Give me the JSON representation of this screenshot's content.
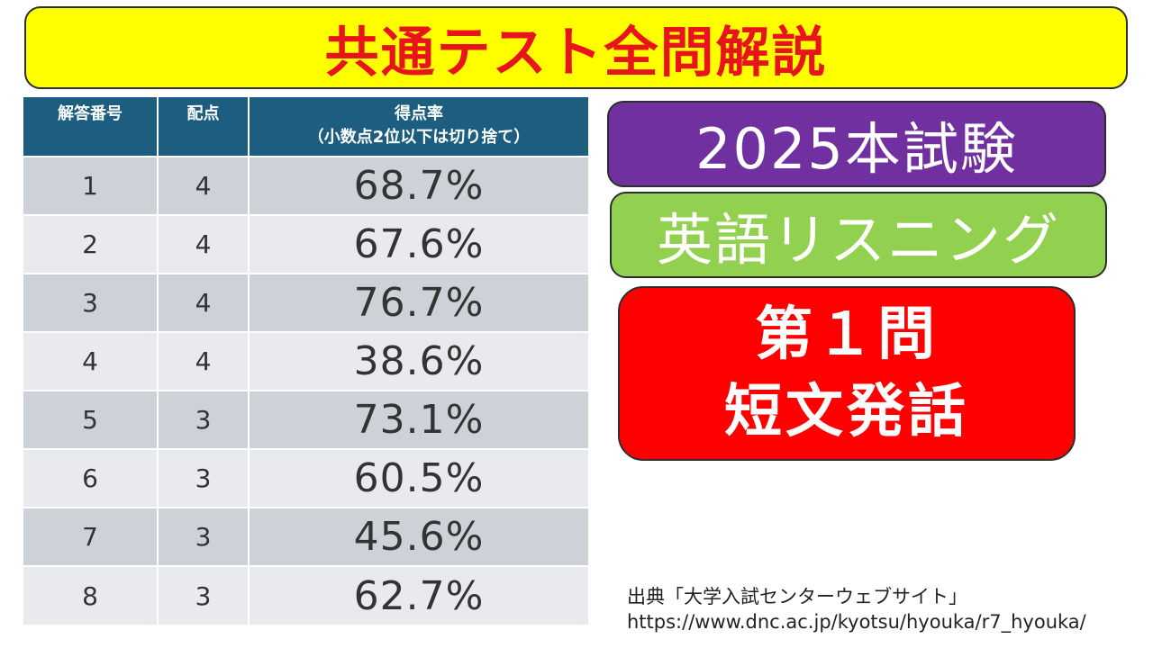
{
  "title": "共通テスト全問解説",
  "table": {
    "headers": {
      "number": "解答番号",
      "points": "配点",
      "rate_line1": "得点率",
      "rate_line2": "（小数点2位以下は切り捨て）"
    },
    "rows": [
      {
        "number": "1",
        "points": "4",
        "rate": "68.7%"
      },
      {
        "number": "2",
        "points": "4",
        "rate": "67.6%"
      },
      {
        "number": "3",
        "points": "4",
        "rate": "76.7%"
      },
      {
        "number": "4",
        "points": "4",
        "rate": "38.6%"
      },
      {
        "number": "5",
        "points": "3",
        "rate": "73.1%"
      },
      {
        "number": "6",
        "points": "3",
        "rate": "60.5%"
      },
      {
        "number": "7",
        "points": "3",
        "rate": "45.6%"
      },
      {
        "number": "8",
        "points": "3",
        "rate": "62.7%"
      }
    ]
  },
  "badges": {
    "year": "2025本試験",
    "subject": "英語リスニング",
    "part_line1": "第１問",
    "part_line2": "短文発話"
  },
  "source": {
    "line1": "出典「大学入試センターウェブサイト」",
    "line2": "https://www.dnc.ac.jp/kyotsu/hyouka/r7_hyouka/"
  },
  "colors": {
    "title_bg": "#ffff00",
    "title_text": "#e8141b",
    "table_header": "#1d5d80",
    "row_dark": "#cdd2d9",
    "row_light": "#e8eaee",
    "year_badge": "#7030a0",
    "subject_badge": "#92d050",
    "part_badge": "#ff0000"
  }
}
